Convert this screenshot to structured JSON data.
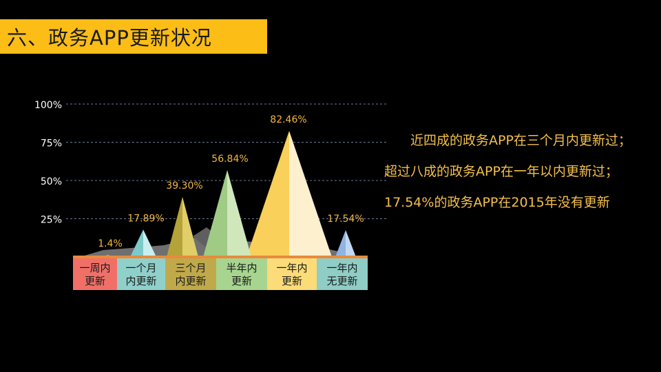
{
  "slide": {
    "title": "六、政务APP更新状况",
    "description": "近四成的政务APP在三个月内更新过；超过八成的政务APP在一年以内更新过；17.54%的政务APP在2015年没有更新"
  },
  "chart_data": {
    "type": "bar",
    "title": "",
    "xlabel": "",
    "ylabel": "",
    "ylim": [
      0,
      100
    ],
    "y_ticks": [
      "25%",
      "50%",
      "75%",
      "100%"
    ],
    "y_tick_values": [
      25,
      50,
      75,
      100
    ],
    "grid": true,
    "categories": [
      [
        "一周内",
        "更新"
      ],
      [
        "一个月",
        "内更新"
      ],
      [
        "三个月",
        "内更新"
      ],
      [
        "半年内",
        "更新"
      ],
      [
        "一年内",
        "更新"
      ],
      [
        "一年内",
        "无更新"
      ]
    ],
    "values": [
      1.4,
      17.89,
      39.3,
      56.84,
      82.46,
      17.54
    ],
    "value_labels": [
      "1.4%",
      "17.89%",
      "39.30%",
      "56.84%",
      "82.46%",
      "17.54%"
    ],
    "colors": {
      "peak_left": [
        "#E76F6F",
        "#7EC9C9",
        "#B5A33A",
        "#9FCB84",
        "#F8D05A",
        "#8FB4E3"
      ],
      "peak_right": [
        "#F6A9A9",
        "#C9EEEE",
        "#E1CE68",
        "#CFE7BA",
        "#FDF0CF",
        "#C2D8F2"
      ],
      "box": [
        "#F07068",
        "#8FD0CB",
        "#C0A94A",
        "#A7D58F",
        "#FBDC78",
        "#8FCDC6"
      ],
      "label": "#F5B841",
      "grid": "#6C7A99",
      "shadow": "#7B7B7B",
      "ridge": "#E98A3C"
    }
  }
}
